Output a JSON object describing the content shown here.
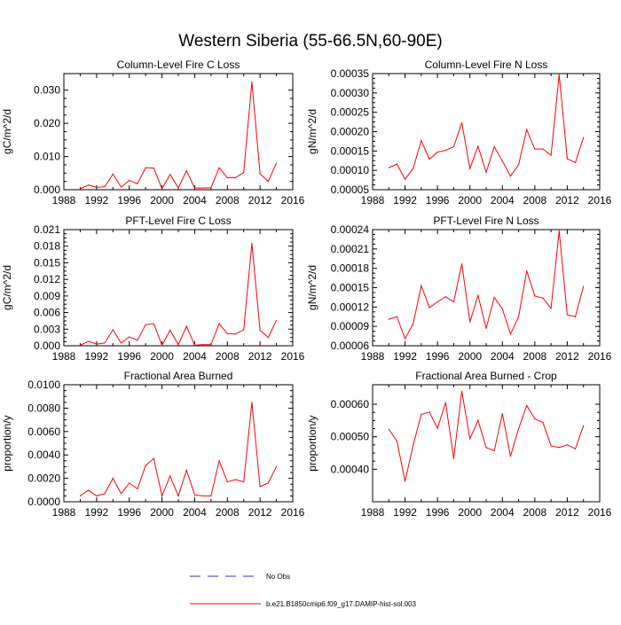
{
  "figure": {
    "title": "Western Siberia (55-66.5N,60-90E)",
    "series_color": "#ff0000",
    "obs_color": "#3333aa"
  },
  "legend": {
    "items": [
      {
        "label": "No Obs",
        "style": "dashed"
      },
      {
        "label": "b.e21.B1850cmip6.f09_g17.DAMIP-hist-sol.003",
        "style": "solid"
      }
    ]
  },
  "chart_data": [
    {
      "type": "line",
      "title": "Column-Level Fire C Loss",
      "ylabel": "gC/m^2/d",
      "xlim": [
        1988,
        2016
      ],
      "ylim": [
        0,
        0.035
      ],
      "xticks": [
        1988,
        1992,
        1996,
        2000,
        2004,
        2008,
        2012,
        2016
      ],
      "yticks": [
        0.0,
        0.01,
        0.02,
        0.03
      ],
      "ytick_labels": [
        "0.000",
        "0.010",
        "0.020",
        "0.030"
      ],
      "x": [
        1990,
        1991,
        1992,
        1993,
        1994,
        1995,
        1996,
        1997,
        1998,
        1999,
        2000,
        2001,
        2002,
        2003,
        2004,
        2005,
        2006,
        2007,
        2008,
        2009,
        2010,
        2011,
        2012,
        2013,
        2014
      ],
      "series": [
        {
          "name": "b.e21.B1850cmip6.f09_g17.DAMIP-hist-sol.003",
          "values": [
            0.0003,
            0.0014,
            0.0007,
            0.0009,
            0.0047,
            0.0008,
            0.0028,
            0.0018,
            0.0066,
            0.0065,
            0.0003,
            0.0046,
            0.0005,
            0.0057,
            0.0005,
            0.0005,
            0.0006,
            0.0066,
            0.0036,
            0.0036,
            0.0052,
            0.0325,
            0.0048,
            0.0025,
            0.008
          ]
        }
      ]
    },
    {
      "type": "line",
      "title": "Column-Level Fire N Loss",
      "ylabel": "gN/m^2/d",
      "xlim": [
        1988,
        2016
      ],
      "ylim": [
        5e-05,
        0.00035
      ],
      "xticks": [
        1988,
        1992,
        1996,
        2000,
        2004,
        2008,
        2012,
        2016
      ],
      "yticks": [
        5e-05,
        0.0001,
        0.00015,
        0.0002,
        0.00025,
        0.0003,
        0.00035
      ],
      "ytick_labels": [
        "0.00005",
        "0.00010",
        "0.00015",
        "0.00020",
        "0.00025",
        "0.00030",
        "0.00035"
      ],
      "x": [
        1990,
        1991,
        1992,
        1993,
        1994,
        1995,
        1996,
        1997,
        1998,
        1999,
        2000,
        2001,
        2002,
        2003,
        2004,
        2005,
        2006,
        2007,
        2008,
        2009,
        2010,
        2011,
        2012,
        2013,
        2014
      ],
      "series": [
        {
          "name": "b.e21.B1850cmip6.f09_g17.DAMIP-hist-sol.003",
          "values": [
            0.000107,
            0.000116,
            7.7e-05,
            0.000105,
            0.000177,
            0.000129,
            0.000147,
            0.000152,
            0.000161,
            0.000223,
            0.000105,
            0.000162,
            9.5e-05,
            0.000161,
            0.000124,
            8.5e-05,
            0.000115,
            0.000205,
            0.000155,
            0.000155,
            0.000139,
            0.000347,
            0.00013,
            0.00012,
            0.000185
          ]
        }
      ]
    },
    {
      "type": "line",
      "title": "PFT-Level Fire C Loss",
      "ylabel": "gC/m^2/d",
      "xlim": [
        1988,
        2016
      ],
      "ylim": [
        0,
        0.021
      ],
      "xticks": [
        1988,
        1992,
        1996,
        2000,
        2004,
        2008,
        2012,
        2016
      ],
      "yticks": [
        0.0,
        0.003,
        0.006,
        0.009,
        0.012,
        0.015,
        0.018,
        0.021
      ],
      "ytick_labels": [
        "0.000",
        "0.003",
        "0.006",
        "0.009",
        "0.012",
        "0.015",
        "0.018",
        "0.021"
      ],
      "x": [
        1990,
        1991,
        1992,
        1993,
        1994,
        1995,
        1996,
        1997,
        1998,
        1999,
        2000,
        2001,
        2002,
        2003,
        2004,
        2005,
        2006,
        2007,
        2008,
        2009,
        2010,
        2011,
        2012,
        2013,
        2014
      ],
      "series": [
        {
          "name": "b.e21.B1850cmip6.f09_g17.DAMIP-hist-sol.003",
          "values": [
            0.0001,
            0.0008,
            0.0003,
            0.0005,
            0.0029,
            0.0005,
            0.0016,
            0.001,
            0.0038,
            0.004,
            0.0001,
            0.0028,
            0.0002,
            0.0035,
            0.0001,
            0.0002,
            0.0002,
            0.004,
            0.0022,
            0.0021,
            0.0029,
            0.0185,
            0.0028,
            0.0015,
            0.0046
          ]
        }
      ]
    },
    {
      "type": "line",
      "title": "PFT-Level Fire N Loss",
      "ylabel": "gN/m^2/d",
      "xlim": [
        1988,
        2016
      ],
      "ylim": [
        6e-05,
        0.00024
      ],
      "xticks": [
        1988,
        1992,
        1996,
        2000,
        2004,
        2008,
        2012,
        2016
      ],
      "yticks": [
        6e-05,
        9e-05,
        0.00012,
        0.00015,
        0.00018,
        0.00021,
        0.00024
      ],
      "ytick_labels": [
        "0.00006",
        "0.00009",
        "0.00012",
        "0.00015",
        "0.00018",
        "0.00021",
        "0.00024"
      ],
      "x": [
        1990,
        1991,
        1992,
        1993,
        1994,
        1995,
        1996,
        1997,
        1998,
        1999,
        2000,
        2001,
        2002,
        2003,
        2004,
        2005,
        2006,
        2007,
        2008,
        2009,
        2010,
        2011,
        2012,
        2013,
        2014
      ],
      "series": [
        {
          "name": "b.e21.B1850cmip6.f09_g17.DAMIP-hist-sol.003",
          "values": [
            0.000101,
            0.000105,
            7.1e-05,
            9.4e-05,
            0.000153,
            0.000119,
            0.000128,
            0.000136,
            0.000128,
            0.000187,
            9.7e-05,
            0.000138,
            8.7e-05,
            0.000135,
            0.000117,
            7.8e-05,
            0.000105,
            0.000176,
            0.000137,
            0.000134,
            0.000118,
            0.000238,
            0.000108,
            0.000105,
            0.000152
          ]
        }
      ]
    },
    {
      "type": "line",
      "title": "Fractional Area Burned",
      "ylabel": "proportion/y",
      "xlim": [
        1988,
        2016
      ],
      "ylim": [
        0,
        0.01
      ],
      "xticks": [
        1988,
        1992,
        1996,
        2000,
        2004,
        2008,
        2012,
        2016
      ],
      "yticks": [
        0.0,
        0.002,
        0.004,
        0.006,
        0.008,
        0.01
      ],
      "ytick_labels": [
        "0.0000",
        "0.0020",
        "0.0040",
        "0.0060",
        "0.0080",
        "0.0100"
      ],
      "x": [
        1990,
        1991,
        1992,
        1993,
        1994,
        1995,
        1996,
        1997,
        1998,
        1999,
        2000,
        2001,
        2002,
        2003,
        2004,
        2005,
        2006,
        2007,
        2008,
        2009,
        2010,
        2011,
        2012,
        2013,
        2014
      ],
      "series": [
        {
          "name": "b.e21.B1850cmip6.f09_g17.DAMIP-hist-sol.003",
          "values": [
            0.0005,
            0.001,
            0.0005,
            0.0007,
            0.002,
            0.0007,
            0.0016,
            0.0011,
            0.0031,
            0.0037,
            0.0005,
            0.0022,
            0.0005,
            0.0027,
            0.0006,
            0.0005,
            0.0005,
            0.0035,
            0.0017,
            0.0019,
            0.0017,
            0.0085,
            0.0013,
            0.0016,
            0.003
          ]
        }
      ]
    },
    {
      "type": "line",
      "title": "Fractional Area Burned - Crop",
      "ylabel": "proportion/y",
      "xlim": [
        1988,
        2016
      ],
      "ylim": [
        0.0003,
        0.00066
      ],
      "xticks": [
        1988,
        1992,
        1996,
        2000,
        2004,
        2008,
        2012,
        2016
      ],
      "yticks": [
        0.0004,
        0.0005,
        0.0006
      ],
      "ytick_labels": [
        "0.00040",
        "0.00050",
        "0.00060"
      ],
      "x": [
        1990,
        1991,
        1992,
        1993,
        1994,
        1995,
        1996,
        1997,
        1998,
        1999,
        2000,
        2001,
        2002,
        2003,
        2004,
        2005,
        2006,
        2007,
        2008,
        2009,
        2010,
        2011,
        2012,
        2013,
        2014
      ],
      "series": [
        {
          "name": "b.e21.B1850cmip6.f09_g17.DAMIP-hist-sol.003",
          "values": [
            0.000523,
            0.000487,
            0.000363,
            0.000474,
            0.000569,
            0.000576,
            0.000526,
            0.000605,
            0.000433,
            0.00064,
            0.000494,
            0.00055,
            0.000467,
            0.000457,
            0.000571,
            0.00044,
            0.000525,
            0.000596,
            0.000555,
            0.000544,
            0.000472,
            0.000467,
            0.000475,
            0.000463,
            0.000534
          ]
        }
      ]
    }
  ]
}
